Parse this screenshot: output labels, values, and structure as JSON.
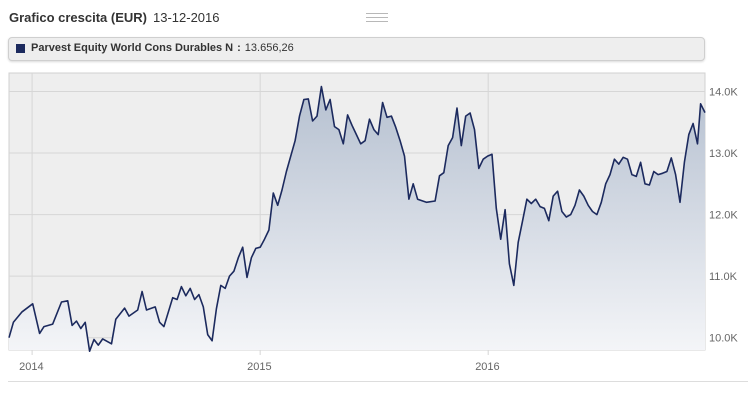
{
  "header": {
    "title": "Grafico crescita (EUR)",
    "date": "13-12-2016"
  },
  "legend": {
    "series_name": "Parvest Equity World Cons Durables N",
    "separator": ":",
    "value": "13.656,26",
    "color": "#1c2a5e"
  },
  "chart_data": {
    "type": "area",
    "series": [
      {
        "name": "Parvest Equity World Cons Durables N"
      }
    ],
    "x_ticks": [
      "2014",
      "2015",
      "2016"
    ],
    "y_ticks": [
      "10.0K",
      "11.0K",
      "12.0K",
      "13.0K",
      "14.0K"
    ],
    "ylim": [
      9800,
      14300
    ],
    "xlim": [
      "2013-11-25",
      "2016-12-13"
    ],
    "grid": true,
    "line_color": "#1c2a5e",
    "points": [
      [
        "2013-11-25",
        10000
      ],
      [
        "2013-12-02",
        10250
      ],
      [
        "2013-12-16",
        10420
      ],
      [
        "2014-01-02",
        10550
      ],
      [
        "2014-01-13",
        10070
      ],
      [
        "2014-01-20",
        10180
      ],
      [
        "2014-02-03",
        10220
      ],
      [
        "2014-02-17",
        10580
      ],
      [
        "2014-02-27",
        10600
      ],
      [
        "2014-03-06",
        10200
      ],
      [
        "2014-03-13",
        10270
      ],
      [
        "2014-03-20",
        10150
      ],
      [
        "2014-03-27",
        10250
      ],
      [
        "2014-04-03",
        9780
      ],
      [
        "2014-04-10",
        9970
      ],
      [
        "2014-04-17",
        9880
      ],
      [
        "2014-04-24",
        9980
      ],
      [
        "2014-05-08",
        9900
      ],
      [
        "2014-05-15",
        10300
      ],
      [
        "2014-05-29",
        10480
      ],
      [
        "2014-06-05",
        10350
      ],
      [
        "2014-06-19",
        10450
      ],
      [
        "2014-06-26",
        10750
      ],
      [
        "2014-07-03",
        10450
      ],
      [
        "2014-07-17",
        10500
      ],
      [
        "2014-07-24",
        10250
      ],
      [
        "2014-07-31",
        10180
      ],
      [
        "2014-08-14",
        10650
      ],
      [
        "2014-08-21",
        10620
      ],
      [
        "2014-08-28",
        10830
      ],
      [
        "2014-09-04",
        10680
      ],
      [
        "2014-09-11",
        10800
      ],
      [
        "2014-09-18",
        10620
      ],
      [
        "2014-09-25",
        10700
      ],
      [
        "2014-10-02",
        10500
      ],
      [
        "2014-10-09",
        10050
      ],
      [
        "2014-10-16",
        9950
      ],
      [
        "2014-10-23",
        10470
      ],
      [
        "2014-10-30",
        10850
      ],
      [
        "2014-11-06",
        10800
      ],
      [
        "2014-11-13",
        11000
      ],
      [
        "2014-11-20",
        11080
      ],
      [
        "2014-11-27",
        11300
      ],
      [
        "2014-12-04",
        11470
      ],
      [
        "2014-12-11",
        10980
      ],
      [
        "2014-12-18",
        11300
      ],
      [
        "2014-12-25",
        11450
      ],
      [
        "2015-01-01",
        11470
      ],
      [
        "2015-01-08",
        11600
      ],
      [
        "2015-01-15",
        11750
      ],
      [
        "2015-01-22",
        12350
      ],
      [
        "2015-01-29",
        12150
      ],
      [
        "2015-02-05",
        12400
      ],
      [
        "2015-02-12",
        12700
      ],
      [
        "2015-02-26",
        13200
      ],
      [
        "2015-03-05",
        13600
      ],
      [
        "2015-03-12",
        13870
      ],
      [
        "2015-03-19",
        13880
      ],
      [
        "2015-03-26",
        13520
      ],
      [
        "2015-04-02",
        13600
      ],
      [
        "2015-04-09",
        14080
      ],
      [
        "2015-04-16",
        13700
      ],
      [
        "2015-04-23",
        13870
      ],
      [
        "2015-04-30",
        13430
      ],
      [
        "2015-05-07",
        13380
      ],
      [
        "2015-05-14",
        13150
      ],
      [
        "2015-05-21",
        13620
      ],
      [
        "2015-05-28",
        13450
      ],
      [
        "2015-06-04",
        13300
      ],
      [
        "2015-06-11",
        13150
      ],
      [
        "2015-06-18",
        13200
      ],
      [
        "2015-06-25",
        13550
      ],
      [
        "2015-07-02",
        13380
      ],
      [
        "2015-07-09",
        13300
      ],
      [
        "2015-07-16",
        13820
      ],
      [
        "2015-07-23",
        13580
      ],
      [
        "2015-07-30",
        13600
      ],
      [
        "2015-08-06",
        13420
      ],
      [
        "2015-08-13",
        13200
      ],
      [
        "2015-08-20",
        12950
      ],
      [
        "2015-08-27",
        12250
      ],
      [
        "2015-09-03",
        12500
      ],
      [
        "2015-09-10",
        12250
      ],
      [
        "2015-09-24",
        12200
      ],
      [
        "2015-10-08",
        12220
      ],
      [
        "2015-10-15",
        12630
      ],
      [
        "2015-10-22",
        12680
      ],
      [
        "2015-10-29",
        13120
      ],
      [
        "2015-11-05",
        13250
      ],
      [
        "2015-11-12",
        13730
      ],
      [
        "2015-11-19",
        13120
      ],
      [
        "2015-11-26",
        13600
      ],
      [
        "2015-12-03",
        13650
      ],
      [
        "2015-12-10",
        13380
      ],
      [
        "2015-12-17",
        12750
      ],
      [
        "2015-12-24",
        12900
      ],
      [
        "2015-12-31",
        12950
      ],
      [
        "2016-01-07",
        12980
      ],
      [
        "2016-01-14",
        12100
      ],
      [
        "2016-01-21",
        11600
      ],
      [
        "2016-01-28",
        12080
      ],
      [
        "2016-02-04",
        11200
      ],
      [
        "2016-02-11",
        10850
      ],
      [
        "2016-02-18",
        11550
      ],
      [
        "2016-02-25",
        11900
      ],
      [
        "2016-03-03",
        12250
      ],
      [
        "2016-03-10",
        12180
      ],
      [
        "2016-03-17",
        12250
      ],
      [
        "2016-03-24",
        12130
      ],
      [
        "2016-03-31",
        12100
      ],
      [
        "2016-04-07",
        11900
      ],
      [
        "2016-04-14",
        12300
      ],
      [
        "2016-04-21",
        12380
      ],
      [
        "2016-04-28",
        12050
      ],
      [
        "2016-05-05",
        11960
      ],
      [
        "2016-05-12",
        12000
      ],
      [
        "2016-05-19",
        12150
      ],
      [
        "2016-05-26",
        12400
      ],
      [
        "2016-06-02",
        12300
      ],
      [
        "2016-06-09",
        12150
      ],
      [
        "2016-06-16",
        12050
      ],
      [
        "2016-06-23",
        12000
      ],
      [
        "2016-06-30",
        12200
      ],
      [
        "2016-07-07",
        12500
      ],
      [
        "2016-07-14",
        12650
      ],
      [
        "2016-07-21",
        12900
      ],
      [
        "2016-07-28",
        12820
      ],
      [
        "2016-08-04",
        12930
      ],
      [
        "2016-08-11",
        12900
      ],
      [
        "2016-08-18",
        12650
      ],
      [
        "2016-08-25",
        12620
      ],
      [
        "2016-09-01",
        12850
      ],
      [
        "2016-09-08",
        12500
      ],
      [
        "2016-09-15",
        12480
      ],
      [
        "2016-09-22",
        12700
      ],
      [
        "2016-09-29",
        12650
      ],
      [
        "2016-10-06",
        12670
      ],
      [
        "2016-10-13",
        12700
      ],
      [
        "2016-10-20",
        12920
      ],
      [
        "2016-10-27",
        12650
      ],
      [
        "2016-11-03",
        12200
      ],
      [
        "2016-11-10",
        12850
      ],
      [
        "2016-11-17",
        13300
      ],
      [
        "2016-11-24",
        13480
      ],
      [
        "2016-12-01",
        13150
      ],
      [
        "2016-12-06",
        13800
      ],
      [
        "2016-12-13",
        13656
      ]
    ]
  }
}
